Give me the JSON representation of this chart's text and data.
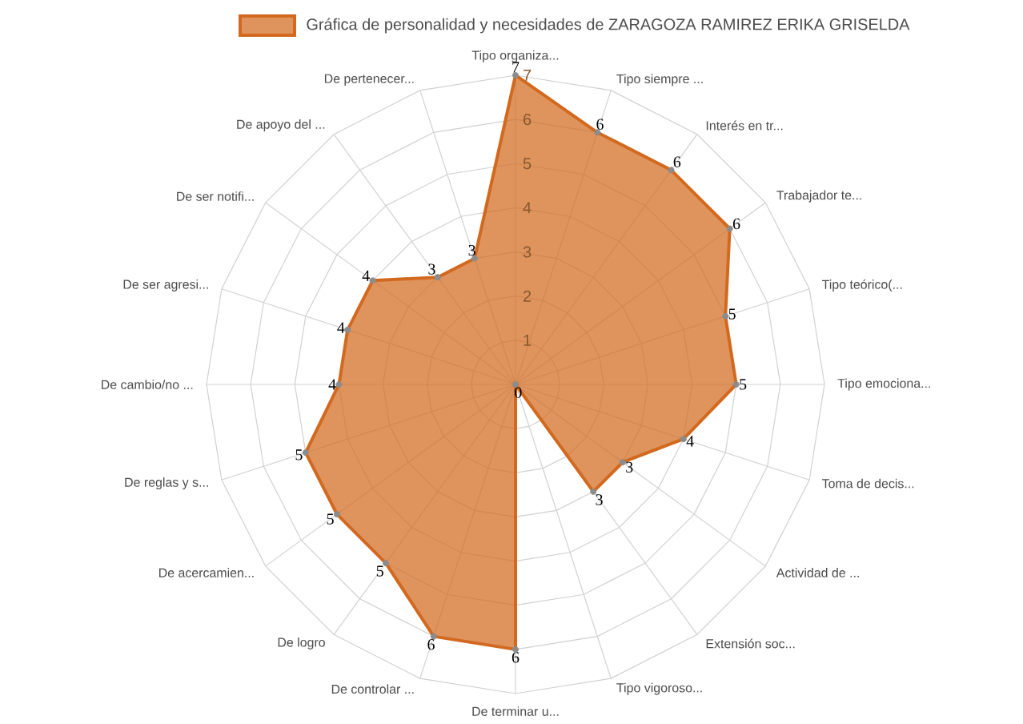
{
  "chart_data": {
    "type": "radar",
    "categories": [
      "Tipo organiza...",
      "Tipo siempre ...",
      "Interés en tr...",
      "Trabajador te...",
      "Tipo teórico(...",
      "Tipo emociona...",
      "Toma de decis...",
      "Actividad de ...",
      "Extensión soc...",
      "Tipo vigoroso...",
      "De terminar u...",
      "De controlar ...",
      "De logro",
      "De acercamien...",
      "De reglas y s...",
      "De cambio/no ...",
      "De ser agresi...",
      "De ser notifi...",
      "De apoyo del ...",
      "De pertenecer..."
    ],
    "series": [
      {
        "name": "Gráfica de personalidad y necesidades de ZARAGOZA RAMIREZ ERIKA GRISELDA",
        "color": "#d2691e",
        "values": [
          7,
          6,
          6,
          6,
          5,
          5,
          4,
          3,
          3,
          0,
          6,
          6,
          5,
          5,
          5,
          4,
          4,
          4,
          3,
          3
        ]
      }
    ],
    "ylim": [
      0,
      7
    ],
    "yticks": [
      1,
      2,
      3,
      4,
      5,
      6,
      7
    ],
    "grid": true,
    "legend": "top",
    "marker": "circle",
    "data_labels": true
  }
}
